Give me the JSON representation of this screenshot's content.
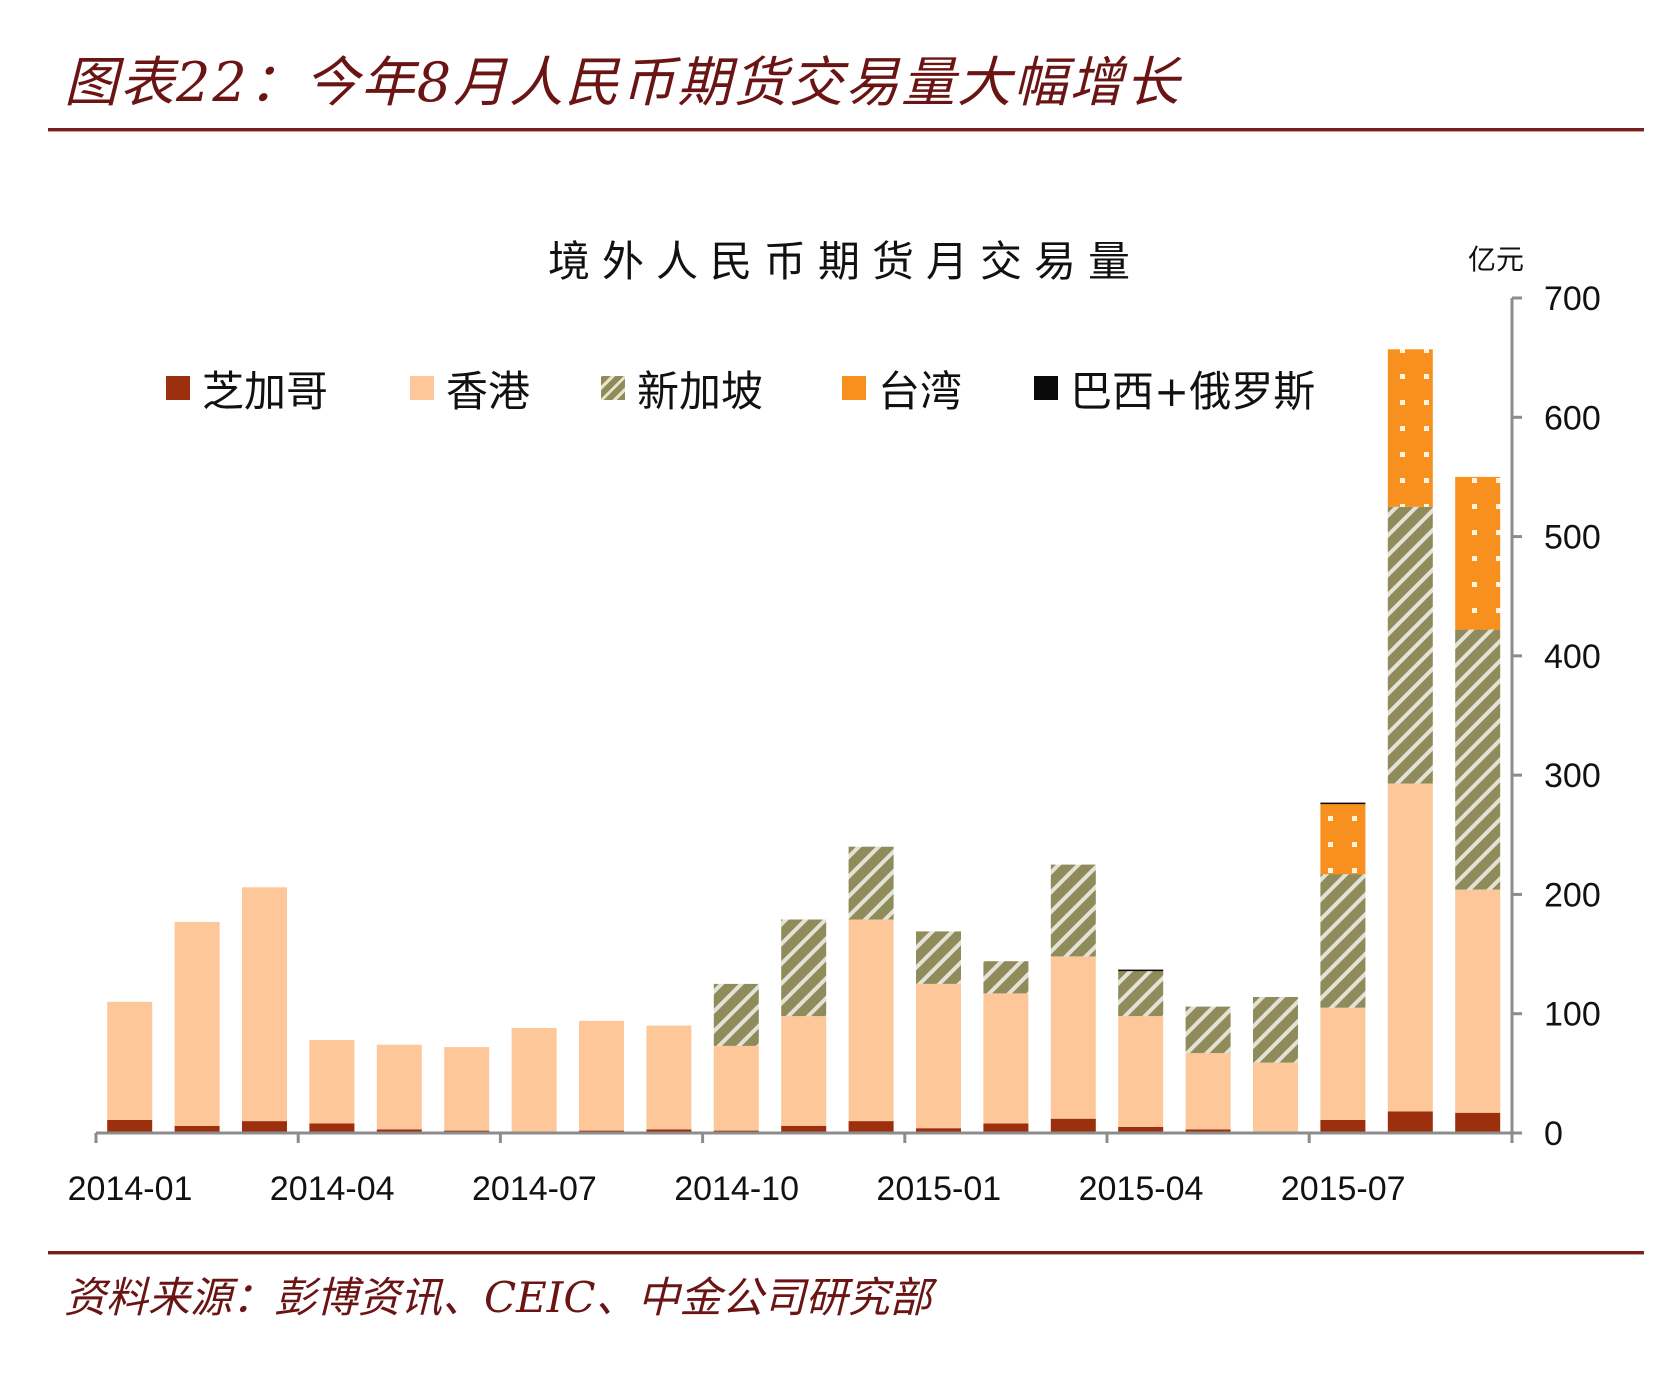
{
  "figure": {
    "label": "图表22：",
    "title": "今年8月人民币期货交易量大幅增长"
  },
  "source": {
    "label": "资料来源：",
    "text": "彭博资讯、CEIC、中金公司研究部"
  },
  "colors": {
    "chicago": "#9b2f0e",
    "hongkong": "#fdc79a",
    "singapore": "#8f8b5a",
    "taiwan": "#f7901e",
    "brazil_russia": "#0a0a0a",
    "axis": "#8c8c8c",
    "title_red": "#6b1414"
  },
  "chart_data": {
    "type": "bar",
    "stacked": true,
    "title": "境外人民币期货月交易量",
    "xlabel": "",
    "ylabel": "亿元",
    "ylim": [
      0,
      700
    ],
    "yticks": [
      0,
      100,
      200,
      300,
      400,
      500,
      600,
      700
    ],
    "y_axis_position": "right",
    "grid": false,
    "legend_position": "top",
    "categories": [
      "2014-01",
      "2014-02",
      "2014-03",
      "2014-04",
      "2014-05",
      "2014-06",
      "2014-07",
      "2014-08",
      "2014-09",
      "2014-10",
      "2014-11",
      "2014-12",
      "2015-01",
      "2015-02",
      "2015-03",
      "2015-04",
      "2015-05",
      "2015-06",
      "2015-07",
      "2015-08",
      "2015-09"
    ],
    "xtick_labels": [
      "2014-01",
      "2014-04",
      "2014-07",
      "2014-10",
      "2015-01",
      "2015-04",
      "2015-07"
    ],
    "series": [
      {
        "name": "芝加哥",
        "key": "chicago",
        "pattern": "solid",
        "values": [
          11,
          6,
          10,
          8,
          3,
          2,
          1,
          2,
          3,
          2,
          6,
          10,
          4,
          8,
          12,
          5,
          3,
          0,
          11,
          18,
          17
        ]
      },
      {
        "name": "香港",
        "key": "hongkong",
        "pattern": "solid",
        "values": [
          99,
          171,
          196,
          70,
          71,
          70,
          87,
          92,
          87,
          71,
          92,
          169,
          121,
          109,
          136,
          93,
          64,
          59,
          94,
          275,
          187
        ]
      },
      {
        "name": "新加坡",
        "key": "singapore",
        "pattern": "diagonal-dots",
        "values": [
          0,
          0,
          0,
          0,
          0,
          0,
          0,
          0,
          0,
          52,
          81,
          61,
          44,
          27,
          77,
          38,
          39,
          55,
          112,
          232,
          218
        ]
      },
      {
        "name": "台湾",
        "key": "taiwan",
        "pattern": "dots",
        "values": [
          0,
          0,
          0,
          0,
          0,
          0,
          0,
          0,
          0,
          0,
          0,
          0,
          0,
          0,
          0,
          0,
          0,
          0,
          59,
          132,
          128
        ]
      },
      {
        "name": "巴西+俄罗斯",
        "key": "brazil_russia",
        "pattern": "solid",
        "values": [
          0,
          0,
          0,
          0,
          0,
          0,
          0,
          0,
          0,
          0,
          0,
          0,
          0,
          0,
          0,
          1,
          0,
          0,
          1,
          0,
          0
        ]
      }
    ]
  }
}
